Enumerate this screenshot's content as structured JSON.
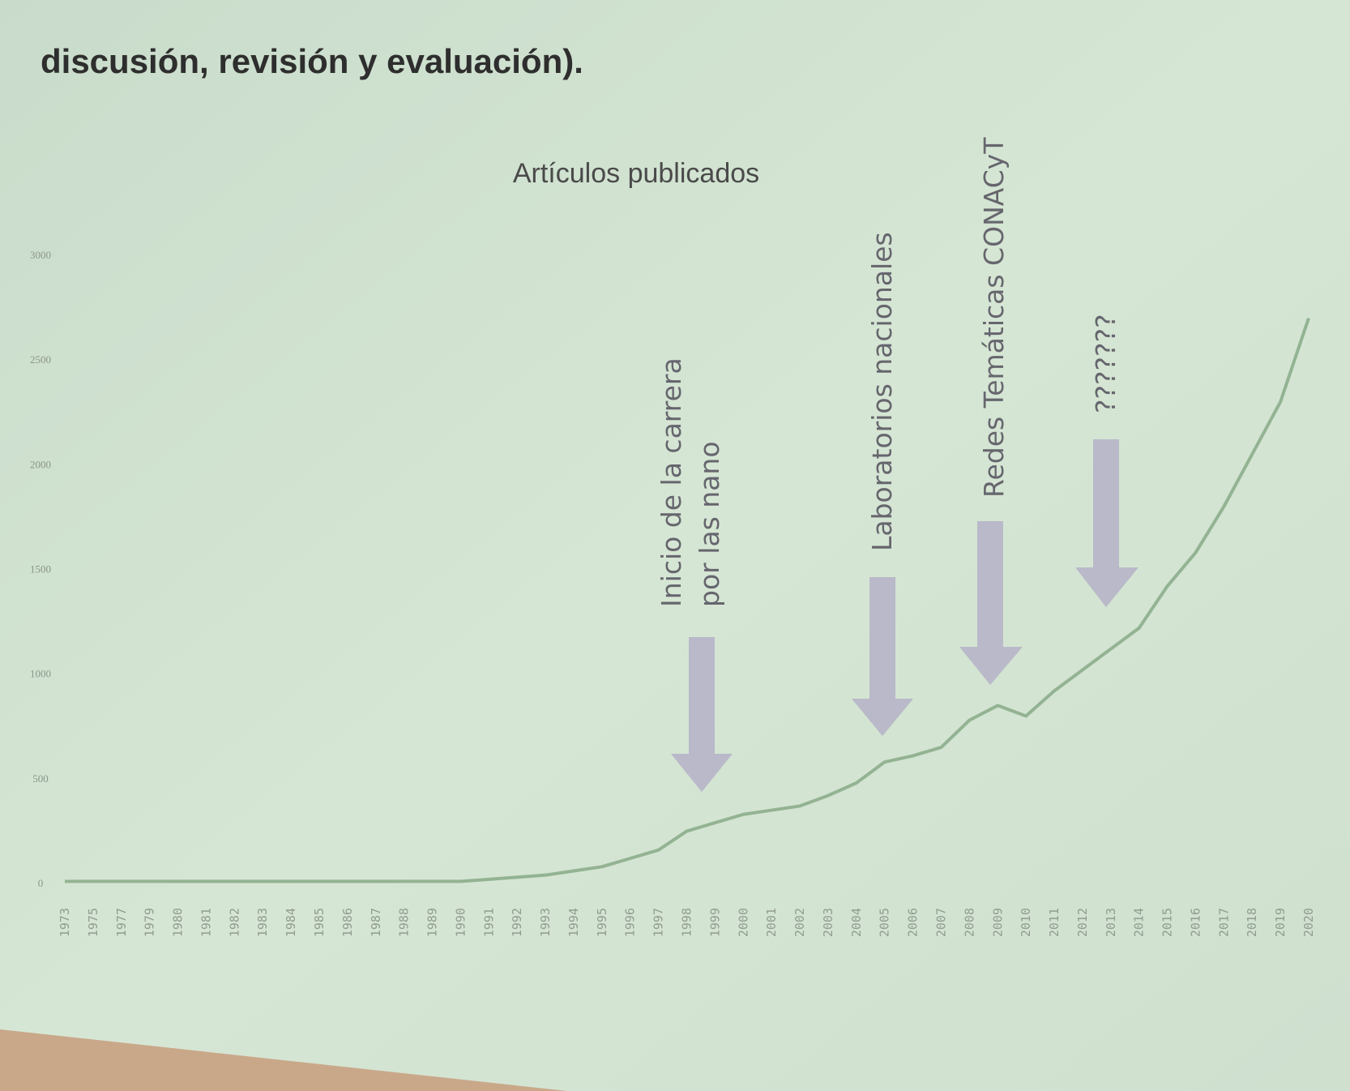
{
  "subtitle": "discusión, revisión y evaluación).",
  "chart_data": {
    "type": "line",
    "title": "Artículos publicados",
    "categories": [
      "1973",
      "1975",
      "1977",
      "1979",
      "1980",
      "1981",
      "1982",
      "1983",
      "1984",
      "1985",
      "1986",
      "1987",
      "1988",
      "1989",
      "1990",
      "1991",
      "1992",
      "1993",
      "1994",
      "1995",
      "1996",
      "1997",
      "1998",
      "1999",
      "2000",
      "2001",
      "2002",
      "2003",
      "2004",
      "2005",
      "2006",
      "2007",
      "2008",
      "2009",
      "2010",
      "2011",
      "2012",
      "2013",
      "2014",
      "2015",
      "2016",
      "2017",
      "2018",
      "2019",
      "2020"
    ],
    "series": [
      {
        "name": "Artículos publicados",
        "color": "#93b393",
        "values": [
          10,
          10,
          10,
          10,
          10,
          10,
          10,
          10,
          10,
          10,
          10,
          10,
          10,
          10,
          10,
          20,
          30,
          40,
          60,
          80,
          120,
          160,
          250,
          290,
          330,
          350,
          370,
          420,
          480,
          580,
          610,
          650,
          780,
          850,
          800,
          920,
          1020,
          1120,
          1220,
          1420,
          1580,
          1800,
          2050,
          2300,
          2700
        ]
      }
    ],
    "ylim": [
      0,
      3000
    ],
    "yticks": [
      0,
      500,
      1000,
      1500,
      2000,
      2500,
      3000
    ],
    "annotations": [
      [
        "Inicio de la carrera",
        "por las nano"
      ],
      [
        "Laboratorios nacionales"
      ],
      [
        "Redes Temáticas CONACyT"
      ],
      [
        "???????"
      ]
    ]
  }
}
